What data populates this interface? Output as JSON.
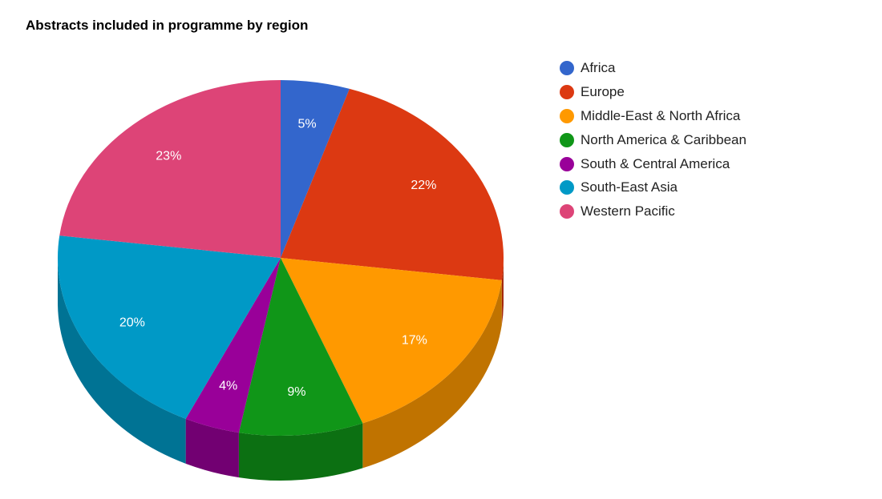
{
  "chart_data": {
    "type": "pie",
    "title": "Abstracts included in programme by region",
    "legend_position": "right",
    "three_d": true,
    "slices": [
      {
        "label": "Africa",
        "value": 5,
        "display": "5%",
        "color": "#3366cc",
        "side_color": "#26519f"
      },
      {
        "label": "Europe",
        "value": 22,
        "display": "22%",
        "color": "#dc3912",
        "side_color": "#a62a0d"
      },
      {
        "label": "Middle-East & North Africa",
        "value": 17,
        "display": "17%",
        "color": "#ff9900",
        "side_color": "#c07300"
      },
      {
        "label": "North America & Caribbean",
        "value": 9,
        "display": "9%",
        "color": "#109618",
        "side_color": "#0c7012"
      },
      {
        "label": "South & Central America",
        "value": 4,
        "display": "4%",
        "color": "#990099",
        "side_color": "#720072"
      },
      {
        "label": "South-East Asia",
        "value": 20,
        "display": "20%",
        "color": "#0099c6",
        "side_color": "#007394"
      },
      {
        "label": "Western Pacific",
        "value": 23,
        "display": "23%",
        "color": "#dd4477",
        "side_color": "#a63359"
      }
    ]
  }
}
